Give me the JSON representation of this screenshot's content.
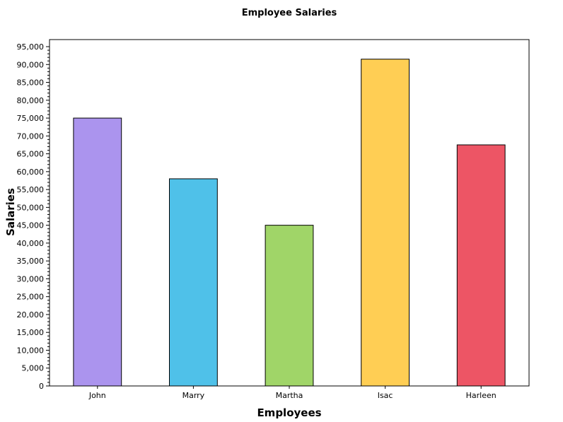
{
  "chart_data": {
    "type": "bar",
    "title": "Employee Salaries",
    "xlabel": "Employees",
    "ylabel": "Salaries",
    "categories": [
      "John",
      "Marry",
      "Martha",
      "Isac",
      "Harleen"
    ],
    "values": [
      75000,
      58000,
      45000,
      91500,
      67500
    ],
    "colors": [
      "#ab94ee",
      "#4fc1e9",
      "#a0d568",
      "#ffce54",
      "#ed5565"
    ],
    "bar_outline_color": "#000000",
    "ylim": [
      0,
      95000
    ],
    "yticks": [
      0,
      5000,
      10000,
      15000,
      20000,
      25000,
      30000,
      35000,
      40000,
      45000,
      50000,
      55000,
      60000,
      65000,
      70000,
      75000,
      80000,
      85000,
      90000,
      95000
    ],
    "ytick_labels": [
      "0",
      "5,000",
      "10,000",
      "15,000",
      "20,000",
      "25,000",
      "30,000",
      "35,000",
      "40,000",
      "45,000",
      "50,000",
      "55,000",
      "60,000",
      "65,000",
      "70,000",
      "75,000",
      "80,000",
      "85,000",
      "90,000",
      "95,000"
    ],
    "grid": false,
    "legend": "none"
  }
}
